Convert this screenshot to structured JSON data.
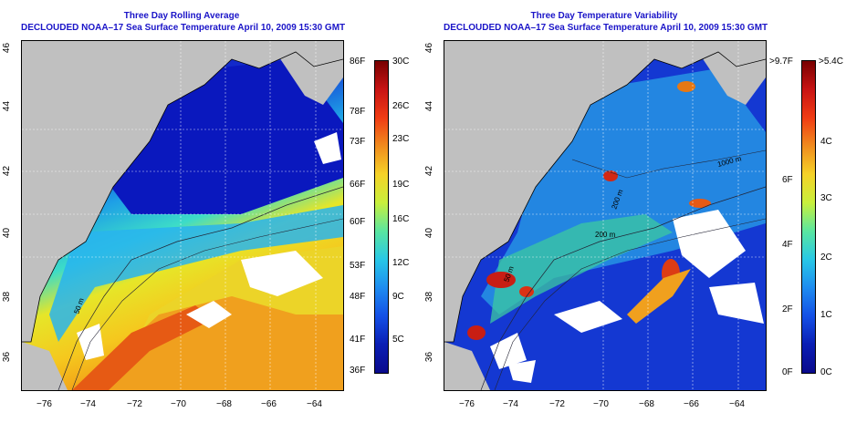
{
  "left_panel": {
    "title_line1": "Three Day Rolling Average",
    "title_line2": "DECLOUDED NOAA–17 Sea Surface Temperature April 10, 2009 15:30 GMT",
    "lat_ticks": [
      "46",
      "44",
      "42",
      "40",
      "38",
      "36"
    ],
    "lon_ticks": [
      "−76",
      "−74",
      "−72",
      "−70",
      "−68",
      "−66",
      "−64"
    ],
    "depth_labels": [
      "50 m"
    ],
    "colorbar": {
      "fahrenheit": [
        "86F",
        "78F",
        "73F",
        "66F",
        "60F",
        "53F",
        "48F",
        "41F",
        "36F"
      ],
      "celsius": [
        "30C",
        "26C",
        "23C",
        "19C",
        "16C",
        "12C",
        "9C",
        "5C"
      ]
    }
  },
  "right_panel": {
    "title_line1": "Three Day Temperature Variability",
    "title_line2": "DECLOUDED NOAA–17 Sea Surface Temperature April 10, 2009 15:30 GMT",
    "lat_ticks": [
      "46",
      "44",
      "42",
      "40",
      "38",
      "36"
    ],
    "lon_ticks": [
      "−76",
      "−74",
      "−72",
      "−70",
      "−68",
      "−66",
      "−64"
    ],
    "depth_labels": [
      "200 m",
      "200 m",
      "1000 m",
      "50 m"
    ],
    "colorbar": {
      "fahrenheit": [
        ">9.7F",
        "6F",
        "4F",
        "2F",
        "0F"
      ],
      "celsius": [
        ">5.4C",
        "4C",
        "3C",
        "2C",
        "1C",
        "0C"
      ]
    }
  },
  "colors": {
    "title": "#1a14c8",
    "land": "#c0c0c0",
    "cold": "#0a1ec8",
    "warm": "#f0a028"
  }
}
